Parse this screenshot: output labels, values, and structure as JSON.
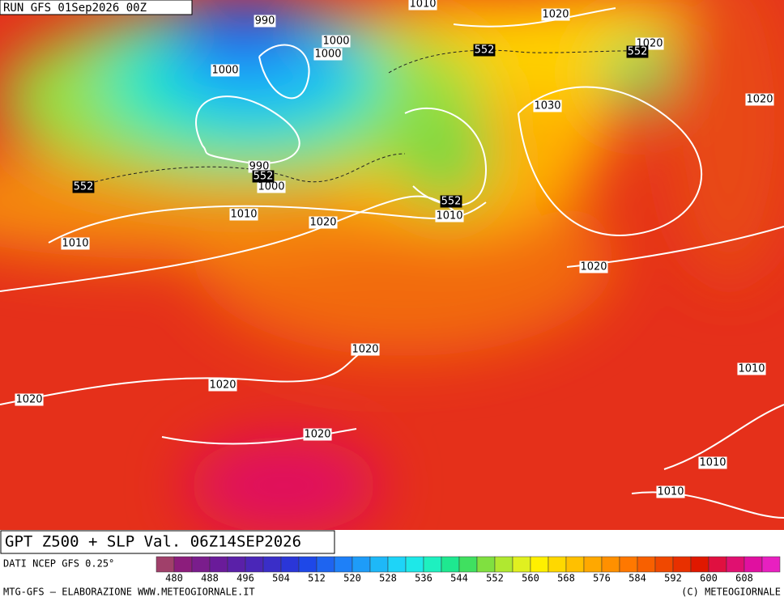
{
  "header": {
    "run": "RUN GFS 01Sep2026 00Z"
  },
  "z500_labels": [
    "552",
    "552",
    "552",
    "552",
    "552"
  ],
  "slp_labels": [
    "990",
    "1010",
    "1020",
    "1000",
    "1000",
    "1000",
    "1020",
    "1030",
    "1020",
    "990",
    "1000",
    "1010",
    "1010",
    "1020",
    "1010",
    "1020",
    "1020",
    "1010",
    "1020",
    "1020",
    "1020",
    "1010",
    "1010"
  ],
  "footer": {
    "title": "GPT Z500 + SLP Val. 06Z14SEP2026",
    "source": "DATI NCEP GFS 0.25°",
    "credit": "MTG-GFS — ELABORAZIONE WWW.METEOGIORNALE.IT",
    "copyright": "(C) METEOGIORNALE"
  },
  "colorbar": {
    "ticks": [
      480,
      488,
      496,
      504,
      512,
      520,
      528,
      536,
      544,
      552,
      560,
      568,
      576,
      584,
      592,
      600,
      608
    ],
    "colors": [
      "#a0406a",
      "#8c1d7c",
      "#7a1d8c",
      "#6a1b9a",
      "#5a20a8",
      "#4a26b8",
      "#3a2ec8",
      "#2a36d8",
      "#1e48e8",
      "#1e64f0",
      "#1e80f8",
      "#1e9cf8",
      "#1eb8f8",
      "#1ed4f8",
      "#1ee8e8",
      "#1ef0c0",
      "#1ee890",
      "#40e060",
      "#80e040",
      "#b0e830",
      "#e0f020",
      "#fff000",
      "#ffd800",
      "#ffc000",
      "#ffa800",
      "#ff9000",
      "#ff7800",
      "#f86000",
      "#f04800",
      "#e83000",
      "#e01800",
      "#e01040",
      "#e01070",
      "#e010a0",
      "#e820c0"
    ]
  }
}
